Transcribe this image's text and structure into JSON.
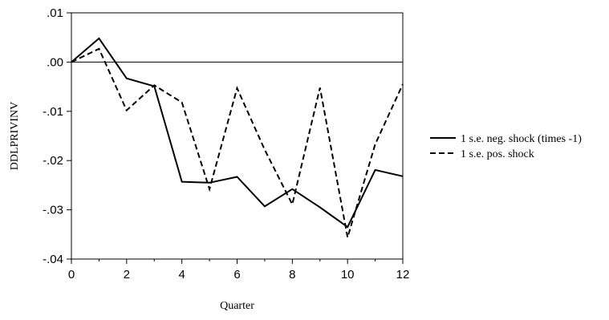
{
  "chart_data": {
    "type": "line",
    "title": "",
    "xlabel": "Quarter",
    "ylabel": "DDLPRIVINV",
    "xlim": [
      0,
      12
    ],
    "ylim": [
      -0.04,
      0.01
    ],
    "xticks": [
      0,
      2,
      4,
      6,
      8,
      10,
      12
    ],
    "xtick_labels": [
      "0",
      "2",
      "4",
      "6",
      "8",
      "10",
      "12"
    ],
    "yticks": [
      0.01,
      0.0,
      -0.01,
      -0.02,
      -0.03,
      -0.04
    ],
    "ytick_labels": [
      ".01",
      ".00",
      "-.01",
      "-.02",
      "-.03",
      "-.04"
    ],
    "zero_line": true,
    "grid": false,
    "legend_position": "right",
    "x": [
      0,
      1,
      2,
      3,
      4,
      5,
      6,
      7,
      8,
      9,
      10,
      11,
      12
    ],
    "series": [
      {
        "name": "1 s.e. neg. shock (times -1)",
        "style": "solid",
        "color": "#000000",
        "values": [
          0.0,
          0.0048,
          -0.0033,
          -0.0049,
          -0.0243,
          -0.0245,
          -0.0233,
          -0.0293,
          -0.0258,
          -0.0295,
          -0.0335,
          -0.0219,
          -0.0232
        ]
      },
      {
        "name": "1 s.e. pos. shock",
        "style": "dashed",
        "color": "#000000",
        "values": [
          0.0,
          0.0027,
          -0.0098,
          -0.0047,
          -0.0082,
          -0.0258,
          -0.0053,
          -0.0178,
          -0.0289,
          -0.0052,
          -0.0356,
          -0.0167,
          -0.0045
        ]
      }
    ]
  }
}
